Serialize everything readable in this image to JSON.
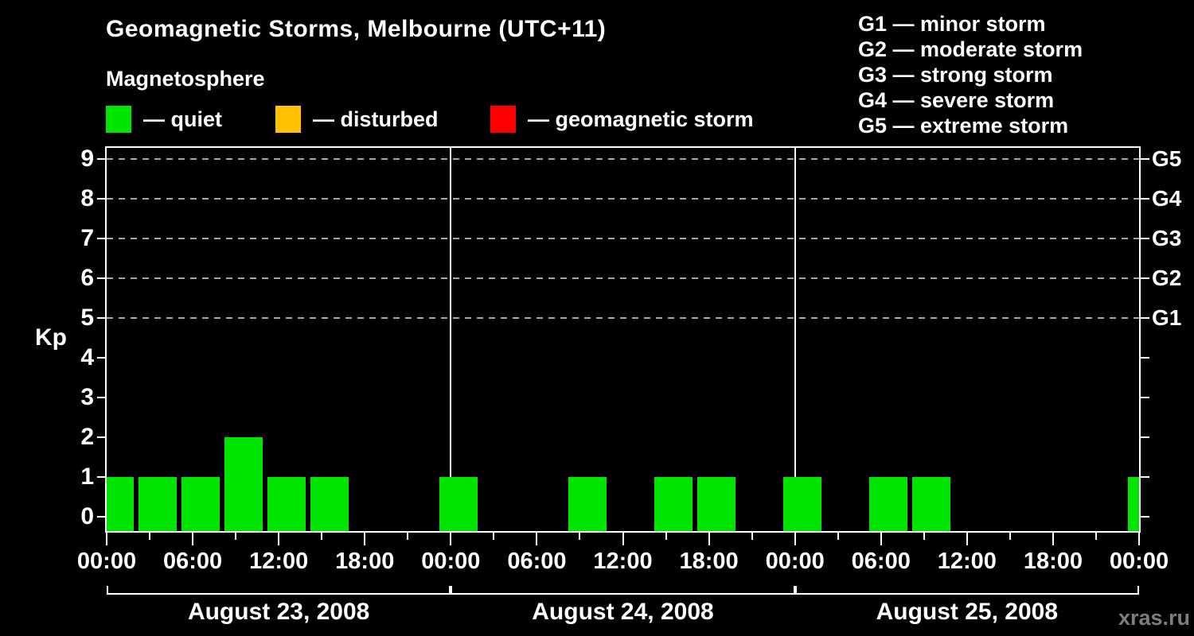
{
  "title": "Geomagnetic Storms, Melbourne (UTC+11)",
  "subtitle": "Magnetosphere",
  "watermark": "xras.ru",
  "legend": {
    "items": [
      {
        "label": "— quiet",
        "color": "#00e400"
      },
      {
        "label": "— disturbed",
        "color": "#ffc000"
      },
      {
        "label": "— geomagnetic storm",
        "color": "#ff0000"
      }
    ]
  },
  "storm_scale_legend": [
    "G1 — minor storm",
    "G2 — moderate storm",
    "G3 — strong storm",
    "G4 — severe storm",
    "G5 — extreme storm"
  ],
  "chart_data": {
    "type": "bar",
    "title": "Geomagnetic Storms, Melbourne (UTC+11)",
    "ylabel": "Kp",
    "ylim": [
      0,
      9
    ],
    "y_ticks": [
      0,
      1,
      2,
      3,
      4,
      5,
      6,
      7,
      8,
      9
    ],
    "gridlines_at": [
      5,
      6,
      7,
      8,
      9
    ],
    "right_axis_labels": [
      {
        "kp": 5,
        "label": "G1"
      },
      {
        "kp": 6,
        "label": "G2"
      },
      {
        "kp": 7,
        "label": "G3"
      },
      {
        "kp": 8,
        "label": "G4"
      },
      {
        "kp": 9,
        "label": "G5"
      }
    ],
    "x_tick_labels": [
      "00:00",
      "06:00",
      "12:00",
      "18:00",
      "00:00",
      "06:00",
      "12:00",
      "18:00",
      "00:00",
      "06:00",
      "12:00",
      "18:00",
      "00:00"
    ],
    "bin_hours": 3,
    "days": [
      {
        "date": "August 23, 2008",
        "kp": [
          1,
          1,
          1,
          2,
          1,
          1,
          0,
          0
        ]
      },
      {
        "date": "August 24, 2008",
        "kp": [
          1,
          0,
          0,
          1,
          0,
          1,
          1,
          0
        ]
      },
      {
        "date": "August 25, 2008",
        "kp": [
          1,
          0,
          1,
          1,
          0,
          0,
          0,
          0
        ]
      }
    ],
    "next_interval_kp": 1,
    "colors": {
      "quiet": "#00e400",
      "disturbed": "#ffc000",
      "storm": "#ff0000",
      "grid": "#a6a6a6",
      "axis": "#ffffff",
      "background": "#000000",
      "watermark_text": "#7d7d7d"
    }
  }
}
